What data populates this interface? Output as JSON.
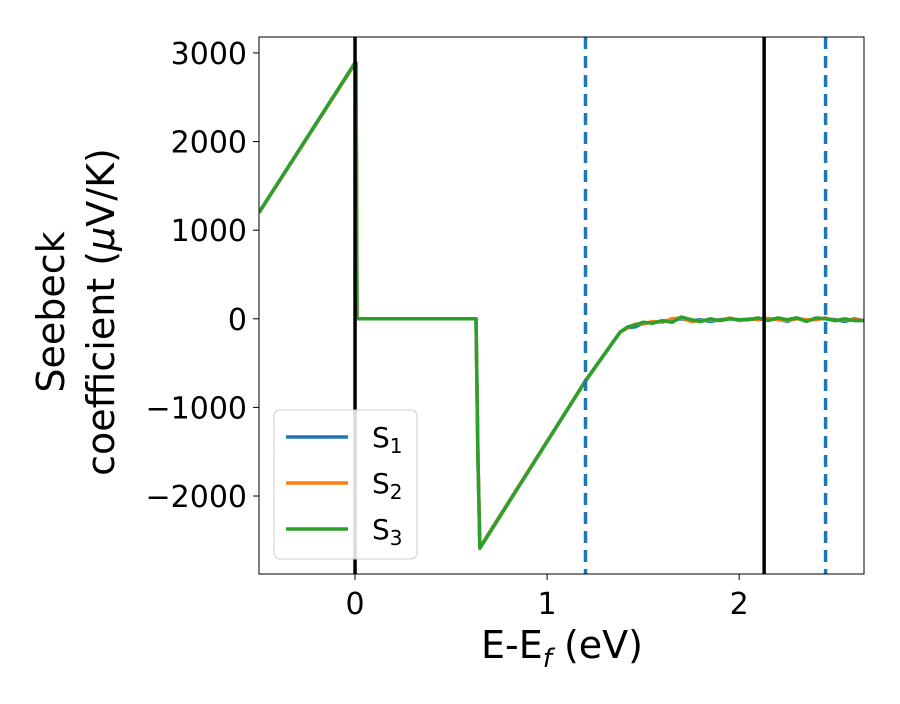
{
  "chart_data": {
    "type": "line",
    "xlabel": "E-E",
    "xlabel_sub": "f",
    "xlabel_unit": " (eV)",
    "ylabel_line1": "Seebeck",
    "ylabel_line2": "coefficient  (",
    "ylabel_mu": "μ",
    "ylabel_unit": "V/K)",
    "xlim": [
      -0.5,
      2.65
    ],
    "ylim": [
      -2880,
      3180
    ],
    "xticks": [
      0,
      1,
      2
    ],
    "xtick_labels": [
      "0",
      "1",
      "2"
    ],
    "yticks": [
      -2000,
      -1000,
      0,
      1000,
      2000,
      3000
    ],
    "ytick_labels": [
      "−2000",
      "−1000",
      "0",
      "1000",
      "2000",
      "3000"
    ],
    "grid": false,
    "legend_position": "lower-left",
    "colors": {
      "s1": "#1f77b4",
      "s2": "#ff7f0e",
      "s3": "#2ca02c",
      "vline_solid": "#000000",
      "vline_dashed": "#1f77b4"
    },
    "vlines_solid": [
      0.0,
      2.13
    ],
    "vlines_dashed": [
      1.2,
      2.45
    ],
    "series": [
      {
        "name": "S",
        "sub": "1",
        "color": "#1f77b4",
        "x": [
          -0.5,
          0.0,
          0.005,
          0.01,
          0.63,
          0.64,
          0.65,
          1.2,
          1.38,
          1.42,
          1.46,
          1.5,
          1.55,
          1.6,
          1.65,
          1.7,
          1.75,
          1.8,
          1.85,
          1.9,
          1.95,
          2.0,
          2.05,
          2.1,
          2.15,
          2.2,
          2.25,
          2.3,
          2.35,
          2.4,
          2.45,
          2.5,
          2.55,
          2.6,
          2.65
        ],
        "y": [
          1200,
          2880,
          2880,
          0,
          0,
          -1600,
          -2580,
          -700,
          -150,
          -100,
          -90,
          -50,
          -40,
          -30,
          -10,
          0,
          -20,
          -10,
          -30,
          -10,
          0,
          -10,
          -5,
          0,
          -10,
          0,
          -30,
          10,
          -20,
          0,
          0,
          -10,
          -30,
          0,
          -20
        ]
      },
      {
        "name": "S",
        "sub": "2",
        "color": "#ff7f0e",
        "x": [
          -0.5,
          0.0,
          0.005,
          0.01,
          0.63,
          0.64,
          0.65,
          1.2,
          1.38,
          1.42,
          1.46,
          1.5,
          1.55,
          1.6,
          1.65,
          1.7,
          1.75,
          1.8,
          1.85,
          1.9,
          1.95,
          2.0,
          2.05,
          2.1,
          2.15,
          2.2,
          2.25,
          2.3,
          2.35,
          2.4,
          2.45,
          2.5,
          2.55,
          2.6,
          2.65
        ],
        "y": [
          1200,
          2880,
          2880,
          0,
          0,
          -1600,
          -2580,
          -700,
          -150,
          -100,
          -60,
          -60,
          -30,
          -40,
          0,
          10,
          -30,
          -20,
          -10,
          -20,
          10,
          -20,
          0,
          -10,
          5,
          -10,
          -20,
          0,
          -10,
          -10,
          10,
          -20,
          -10,
          -10,
          -20
        ]
      },
      {
        "name": "S",
        "sub": "3",
        "color": "#2ca02c",
        "x": [
          -0.5,
          0.0,
          0.005,
          0.01,
          0.63,
          0.64,
          0.65,
          1.2,
          1.38,
          1.42,
          1.46,
          1.5,
          1.55,
          1.6,
          1.65,
          1.7,
          1.75,
          1.8,
          1.85,
          1.9,
          1.95,
          2.0,
          2.05,
          2.1,
          2.15,
          2.2,
          2.25,
          2.3,
          2.35,
          2.4,
          2.45,
          2.5,
          2.55,
          2.6,
          2.65
        ],
        "y": [
          1200,
          2890,
          2890,
          0,
          0,
          -1600,
          -2590,
          -700,
          -150,
          -90,
          -70,
          -40,
          -50,
          -20,
          -40,
          20,
          -10,
          -30,
          0,
          -20,
          0,
          -10,
          -10,
          10,
          -20,
          10,
          -10,
          10,
          -30,
          10,
          0,
          -20,
          0,
          -20,
          -20
        ]
      }
    ]
  }
}
